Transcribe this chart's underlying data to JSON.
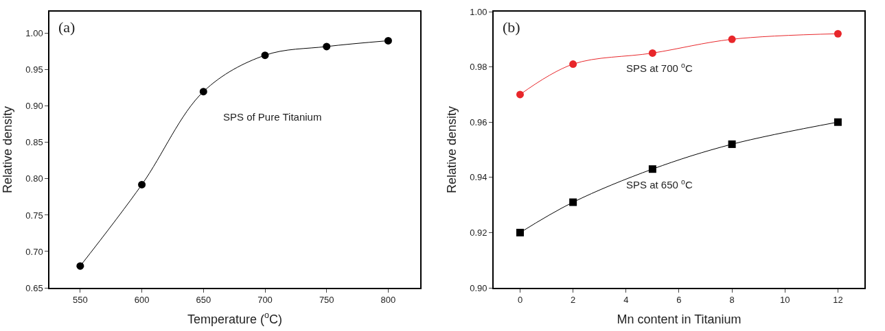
{
  "chart_data": [
    {
      "type": "line",
      "xlabel": "Temperature ($^{o}$C)",
      "ylabel": "Relative density",
      "annotations": [
        "(a)",
        "SPS of Pure Titanium"
      ],
      "x": [
        550,
        600,
        650,
        700,
        750,
        800
      ],
      "series": [
        {
          "color": "#000000",
          "values": [
            0.68,
            0.792,
            0.92,
            0.97,
            0.982,
            0.99
          ]
        }
      ],
      "xlim": [
        525,
        826
      ],
      "xticks": [
        550,
        600,
        650,
        700,
        750,
        800
      ],
      "ylim": [
        0.65,
        1.03
      ],
      "yticks": [
        0.65,
        {
          "value": 0.7,
          "label": "0.70"
        },
        0.75,
        {
          "value": 0.8,
          "label": "0.80"
        },
        0.85,
        {
          "value": 0.9,
          "label": "0.90"
        },
        0.95,
        {
          "value": 1,
          "label": "1.00"
        }
      ],
      "legend": false,
      "marker": "circle",
      "line_style": "solid"
    },
    {
      "type": "line",
      "xlabel": "Mn content in Titanium",
      "ylabel": "Relative density",
      "annotations": [
        "(b)"
      ],
      "x": [
        0,
        2,
        5,
        8,
        12
      ],
      "series": [
        {
          "name": "SPS at 700 $^{o}$C",
          "color": "#e8262a",
          "marker": "circle",
          "values": [
            0.97,
            0.981,
            0.985,
            0.99,
            0.992
          ]
        },
        {
          "name": "SPS at 650 $^{o}$C",
          "color": "#000000",
          "marker": "square",
          "values": [
            0.92,
            0.931,
            0.943,
            0.952,
            0.96
          ]
        }
      ],
      "xlim": [
        -1,
        13
      ],
      "xticks": [
        0,
        2,
        4,
        6,
        8,
        10,
        12
      ],
      "ylim": [
        0.9,
        1.0
      ],
      "yticks": [
        {
          "value": 0.9,
          "label": "0.90"
        },
        0.92,
        0.94,
        0.96,
        0.98,
        {
          "value": 1,
          "label": "1.00"
        }
      ],
      "legend": false,
      "line_style": "solid"
    }
  ]
}
